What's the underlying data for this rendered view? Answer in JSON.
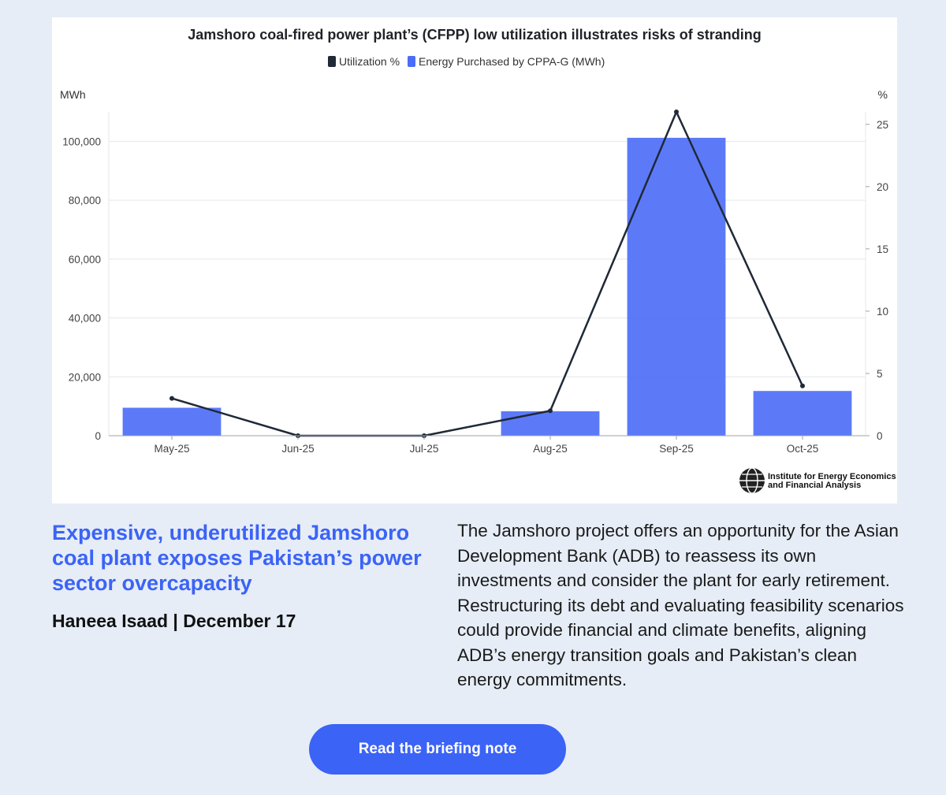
{
  "chart_data": {
    "type": "bar",
    "title": "Jamshoro coal-fired power plant’s (CFPP) low utilization illustrates risks of stranding",
    "categories": [
      "May-25",
      "Jun-25",
      "Jul-25",
      "Aug-25",
      "Sep-25",
      "Oct-25"
    ],
    "series": [
      {
        "name": "Energy Purchased by CPPA-G (MWh)",
        "type": "bar",
        "axis": "left",
        "color": "#4a6cf7",
        "values": [
          9500,
          0,
          0,
          8300,
          101200,
          15200
        ]
      },
      {
        "name": "Utilization %",
        "type": "line",
        "axis": "right",
        "color": "#1f2937",
        "values": [
          3,
          0,
          0,
          2,
          26,
          4
        ]
      }
    ],
    "y_left": {
      "label": "MWh",
      "ylim": [
        0,
        110000
      ],
      "ticks": [
        "0",
        "20,000",
        "40,000",
        "60,000",
        "80,000",
        "100,000"
      ],
      "tick_values": [
        0,
        20000,
        40000,
        60000,
        80000,
        100000
      ]
    },
    "y_right": {
      "label": "%",
      "ylim": [
        0,
        26
      ],
      "ticks": [
        "0",
        "5",
        "10",
        "15",
        "20",
        "25"
      ],
      "tick_values": [
        0,
        5,
        10,
        15,
        20,
        25
      ]
    },
    "legend_position": "top-center",
    "grid": true,
    "source_logo_text": [
      "Institute for Energy Economics",
      "and Financial Analysis"
    ]
  },
  "article": {
    "headline": "Expensive, underutilized Jamshoro coal plant exposes Pakistan’s power sector overcapacity",
    "byline": "Haneea Isaad | December 17",
    "summary": "The Jamshoro project offers an opportunity for the Asian Development Bank (ADB) to reassess its own investments and consider the plant for early retirement. Restructuring its debt and evaluating feasibility scenarios could provide financial and climate benefits, aligning ADB’s energy transition goals and Pakistan’s clean energy commitments.",
    "cta_label": "Read the briefing note"
  },
  "colors": {
    "accent": "#3b63f6",
    "background": "#e6edf7"
  }
}
